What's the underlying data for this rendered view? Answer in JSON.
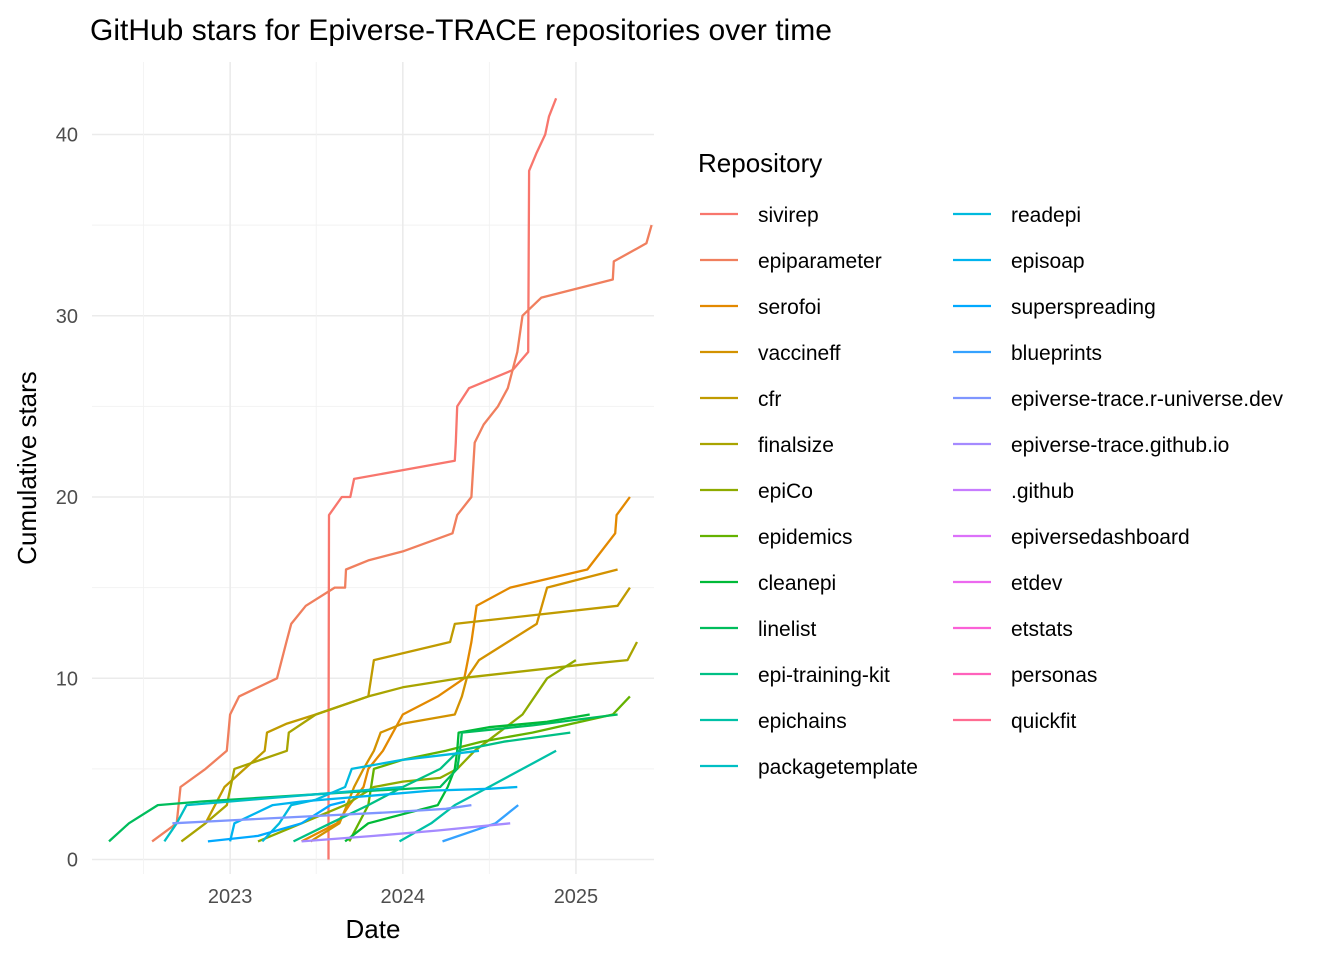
{
  "chart_data": {
    "type": "line",
    "title": "GitHub stars for Epiverse-TRACE repositories over time",
    "xlabel": "Date",
    "ylabel": "Cumulative stars",
    "x_ticks": [
      "2023",
      "2024",
      "2025"
    ],
    "y_ticks": [
      0,
      10,
      20,
      30,
      40
    ],
    "xlim": [
      "2022-03-15",
      "2025-06-15"
    ],
    "ylim": [
      -0.8,
      44
    ],
    "grid": true,
    "legend": {
      "title": "Repository",
      "placement": "right"
    },
    "series": [
      {
        "name": "sivirep",
        "color": "#F8766D",
        "points": [
          [
            "2023-07-28",
            0
          ],
          [
            "2023-07-28",
            5
          ],
          [
            "2023-07-29",
            19
          ],
          [
            "2023-08-25",
            20
          ],
          [
            "2023-09-12",
            20
          ],
          [
            "2023-09-20",
            21
          ],
          [
            "2024-04-20",
            22
          ],
          [
            "2024-04-22",
            23
          ],
          [
            "2024-04-25",
            25
          ],
          [
            "2024-05-20",
            26
          ],
          [
            "2024-08-20",
            27
          ],
          [
            "2024-09-22",
            28
          ],
          [
            "2024-09-24",
            38
          ],
          [
            "2024-10-10",
            39
          ],
          [
            "2024-10-28",
            40
          ],
          [
            "2024-11-05",
            41
          ],
          [
            "2024-11-20",
            42
          ]
        ]
      },
      {
        "name": "epiparameter",
        "color": "#F07F5E",
        "points": [
          [
            "2022-07-20",
            1
          ],
          [
            "2022-09-10",
            2
          ],
          [
            "2022-09-18",
            4
          ],
          [
            "2022-11-10",
            5
          ],
          [
            "2022-12-25",
            6
          ],
          [
            "2023-01-01",
            8
          ],
          [
            "2023-01-20",
            9
          ],
          [
            "2023-04-10",
            10
          ],
          [
            "2023-04-30",
            12
          ],
          [
            "2023-05-10",
            13
          ],
          [
            "2023-06-10",
            14
          ],
          [
            "2023-08-10",
            15
          ],
          [
            "2023-09-01",
            15
          ],
          [
            "2023-09-03",
            16
          ],
          [
            "2023-10-20",
            16.5
          ],
          [
            "2024-01-01",
            17
          ],
          [
            "2024-04-15",
            18
          ],
          [
            "2024-04-25",
            19
          ],
          [
            "2024-05-25",
            20
          ],
          [
            "2024-06-01",
            23
          ],
          [
            "2024-06-20",
            24
          ],
          [
            "2024-07-20",
            25
          ],
          [
            "2024-08-10",
            26
          ],
          [
            "2024-08-30",
            28
          ],
          [
            "2024-09-10",
            30
          ],
          [
            "2024-10-20",
            31
          ],
          [
            "2025-03-20",
            32
          ],
          [
            "2025-03-22",
            33
          ],
          [
            "2025-05-30",
            34
          ],
          [
            "2025-06-10",
            35
          ]
        ]
      },
      {
        "name": "serofoi",
        "color": "#E38900",
        "points": [
          [
            "2023-06-01",
            1
          ],
          [
            "2023-08-15",
            2
          ],
          [
            "2023-09-10",
            3
          ],
          [
            "2023-10-10",
            4
          ],
          [
            "2023-10-20",
            5
          ],
          [
            "2023-11-20",
            6
          ],
          [
            "2024-01-01",
            8
          ],
          [
            "2024-03-15",
            9
          ],
          [
            "2024-05-10",
            10
          ],
          [
            "2024-05-25",
            12
          ],
          [
            "2024-06-05",
            14
          ],
          [
            "2024-08-15",
            15
          ],
          [
            "2025-01-25",
            16
          ],
          [
            "2025-03-25",
            18
          ],
          [
            "2025-03-28",
            19
          ],
          [
            "2025-04-25",
            20
          ]
        ]
      },
      {
        "name": "vaccineff",
        "color": "#D39200",
        "points": [
          [
            "2023-06-20",
            1
          ],
          [
            "2023-08-20",
            2
          ],
          [
            "2023-09-05",
            3
          ],
          [
            "2023-09-20",
            4
          ],
          [
            "2023-10-10",
            5
          ],
          [
            "2023-11-01",
            6
          ],
          [
            "2023-11-15",
            7
          ],
          [
            "2024-01-01",
            7.5
          ],
          [
            "2024-04-20",
            8
          ],
          [
            "2024-05-05",
            9
          ],
          [
            "2024-05-15",
            10
          ],
          [
            "2024-06-10",
            11
          ],
          [
            "2024-08-10",
            12
          ],
          [
            "2024-10-10",
            13
          ],
          [
            "2024-11-01",
            15
          ],
          [
            "2025-03-30",
            16
          ]
        ]
      },
      {
        "name": "cfr",
        "color": "#C09B00",
        "points": [
          [
            "2022-11-10",
            2
          ],
          [
            "2022-12-20",
            4
          ],
          [
            "2023-03-15",
            6
          ],
          [
            "2023-03-20",
            7
          ],
          [
            "2023-05-01",
            7.5
          ],
          [
            "2023-07-01",
            8
          ],
          [
            "2023-10-20",
            9
          ],
          [
            "2023-11-01",
            11
          ],
          [
            "2024-04-10",
            12
          ],
          [
            "2024-04-20",
            13
          ],
          [
            "2025-03-30",
            14
          ],
          [
            "2025-04-25",
            15
          ]
        ]
      },
      {
        "name": "finalsize",
        "color": "#A9A400",
        "points": [
          [
            "2022-09-20",
            1
          ],
          [
            "2022-11-10",
            2
          ],
          [
            "2022-12-25",
            3
          ],
          [
            "2023-01-10",
            5
          ],
          [
            "2023-05-01",
            6
          ],
          [
            "2023-05-05",
            7
          ],
          [
            "2023-07-01",
            8
          ],
          [
            "2023-10-20",
            9
          ],
          [
            "2024-01-01",
            9.5
          ],
          [
            "2024-04-30",
            10
          ],
          [
            "2025-01-30",
            10.8
          ],
          [
            "2025-04-20",
            11
          ],
          [
            "2025-05-10",
            12
          ]
        ]
      },
      {
        "name": "epiCo",
        "color": "#8EAB00",
        "points": [
          [
            "2023-03-01",
            1
          ],
          [
            "2023-06-01",
            2
          ],
          [
            "2023-09-01",
            3
          ],
          [
            "2023-11-01",
            4
          ],
          [
            "2024-01-01",
            4.3
          ],
          [
            "2024-03-20",
            4.5
          ],
          [
            "2024-04-25",
            5
          ],
          [
            "2024-06-01",
            6
          ],
          [
            "2024-09-10",
            8
          ],
          [
            "2024-11-01",
            10
          ],
          [
            "2025-01-01",
            11
          ]
        ]
      },
      {
        "name": "epidemics",
        "color": "#64B200",
        "points": [
          [
            "2023-09-10",
            1
          ],
          [
            "2023-10-20",
            3
          ],
          [
            "2023-11-01",
            5
          ],
          [
            "2024-01-01",
            5.5
          ],
          [
            "2024-04-01",
            6
          ],
          [
            "2024-06-15",
            6.5
          ],
          [
            "2024-10-01",
            7
          ],
          [
            "2025-03-20",
            8
          ],
          [
            "2025-04-25",
            9
          ]
        ]
      },
      {
        "name": "cleanepi",
        "color": "#00BA38",
        "points": [
          [
            "2023-09-01",
            1
          ],
          [
            "2023-10-20",
            2
          ],
          [
            "2024-01-01",
            2.5
          ],
          [
            "2024-03-15",
            3
          ],
          [
            "2024-04-05",
            4
          ],
          [
            "2024-04-20",
            5
          ],
          [
            "2024-04-25",
            6
          ],
          [
            "2024-04-28",
            7
          ],
          [
            "2024-07-01",
            7.3
          ],
          [
            "2024-11-01",
            7.6
          ],
          [
            "2025-01-30",
            8
          ]
        ]
      },
      {
        "name": "linelist",
        "color": "#00BD5C",
        "points": [
          [
            "2022-04-20",
            1
          ],
          [
            "2022-06-01",
            2
          ],
          [
            "2022-08-01",
            3
          ],
          [
            "2022-11-01",
            3.2
          ],
          [
            "2023-03-01",
            3.4
          ],
          [
            "2023-07-01",
            3.6
          ],
          [
            "2023-11-01",
            3.8
          ],
          [
            "2024-03-20",
            4
          ],
          [
            "2024-04-25",
            5
          ],
          [
            "2024-05-01",
            6
          ],
          [
            "2024-05-05",
            7
          ],
          [
            "2024-10-01",
            7.4
          ],
          [
            "2025-03-30",
            8
          ]
        ]
      },
      {
        "name": "epi-training-kit",
        "color": "#00C085",
        "points": [
          [
            "2023-05-15",
            1
          ],
          [
            "2023-08-01",
            2
          ],
          [
            "2023-10-20",
            3
          ],
          [
            "2024-01-01",
            4
          ],
          [
            "2024-03-20",
            5
          ],
          [
            "2024-04-28",
            6
          ],
          [
            "2024-08-01",
            6.5
          ],
          [
            "2024-12-20",
            7
          ]
        ]
      },
      {
        "name": "epichains",
        "color": "#00C1A7",
        "points": [
          [
            "2023-12-25",
            1
          ],
          [
            "2024-03-01",
            2
          ],
          [
            "2024-04-20",
            3
          ],
          [
            "2024-07-01",
            4
          ],
          [
            "2024-09-10",
            5
          ],
          [
            "2024-11-20",
            6
          ]
        ]
      },
      {
        "name": "packagetemplate",
        "color": "#00BFC4",
        "points": [
          [
            "2022-08-15",
            1
          ],
          [
            "2022-09-10",
            2
          ],
          [
            "2022-10-01",
            3
          ],
          [
            "2023-01-01",
            3.2
          ],
          [
            "2023-04-01",
            3.4
          ],
          [
            "2023-07-01",
            3.6
          ],
          [
            "2023-10-01",
            3.8
          ],
          [
            "2024-01-01",
            4
          ]
        ]
      },
      {
        "name": "readepi",
        "color": "#00BADE",
        "points": [
          [
            "2023-03-10",
            1
          ],
          [
            "2023-04-15",
            2
          ],
          [
            "2023-05-10",
            3
          ],
          [
            "2023-07-01",
            3.3
          ],
          [
            "2023-09-01",
            4
          ],
          [
            "2023-09-15",
            5
          ],
          [
            "2024-01-01",
            5.5
          ],
          [
            "2024-06-10",
            6
          ]
        ]
      },
      {
        "name": "episoap",
        "color": "#00B4EF",
        "points": [
          [
            "2023-01-01",
            1
          ],
          [
            "2023-01-10",
            2
          ],
          [
            "2023-04-01",
            3
          ],
          [
            "2023-06-01",
            3.2
          ],
          [
            "2023-09-01",
            3.4
          ],
          [
            "2023-12-01",
            3.6
          ],
          [
            "2024-03-01",
            3.8
          ],
          [
            "2024-07-01",
            3.9
          ],
          [
            "2024-08-30",
            4
          ]
        ]
      },
      {
        "name": "superspreading",
        "color": "#00A9FF",
        "points": [
          [
            "2022-11-15",
            1
          ],
          [
            "2023-03-01",
            1.3
          ],
          [
            "2023-06-01",
            2
          ],
          [
            "2023-08-01",
            3
          ],
          [
            "2023-09-01",
            3.2
          ]
        ]
      },
      {
        "name": "blueprints",
        "color": "#35A2FF",
        "points": [
          [
            "2024-03-25",
            1
          ],
          [
            "2024-07-15",
            2
          ],
          [
            "2024-09-01",
            3
          ]
        ]
      },
      {
        "name": "epiverse-trace.r-universe.dev",
        "color": "#7F96FF",
        "points": [
          [
            "2022-09-01",
            2
          ],
          [
            "2023-02-01",
            2.2
          ],
          [
            "2023-07-01",
            2.4
          ],
          [
            "2023-12-01",
            2.6
          ],
          [
            "2024-04-01",
            2.8
          ],
          [
            "2024-05-25",
            3
          ]
        ]
      },
      {
        "name": "epiverse-trace.github.io",
        "color": "#A58AFF",
        "points": [
          [
            "2023-06-01",
            1
          ],
          [
            "2023-11-01",
            1.3
          ],
          [
            "2024-03-15",
            1.6
          ],
          [
            "2024-08-15",
            2
          ]
        ]
      },
      {
        "name": ".github",
        "color": "#C77CFF",
        "points": []
      },
      {
        "name": "epiversedashboard",
        "color": "#DC71FA",
        "points": []
      },
      {
        "name": "etdev",
        "color": "#EC69EF",
        "points": []
      },
      {
        "name": "etstats",
        "color": "#FB61D7",
        "points": []
      },
      {
        "name": "personas",
        "color": "#FF62BC",
        "points": []
      },
      {
        "name": "quickfit",
        "color": "#FF6C91",
        "points": []
      }
    ]
  }
}
